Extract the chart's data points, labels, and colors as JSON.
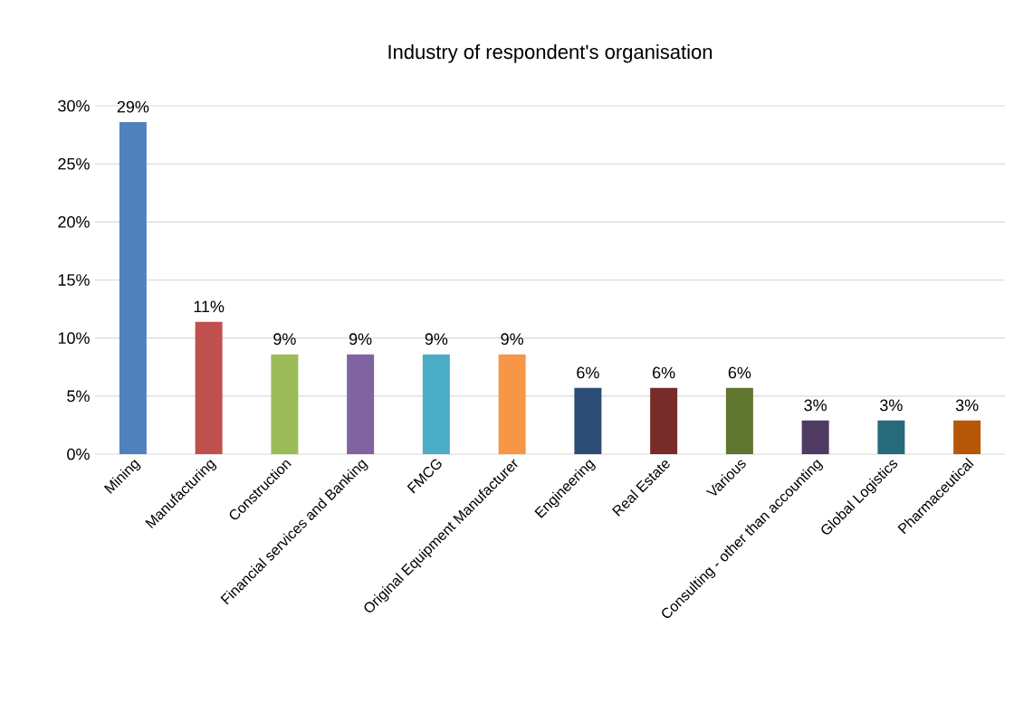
{
  "chart_data": {
    "type": "bar",
    "title": "Industry of respondent's organisation",
    "categories": [
      "Mining",
      "Manufacturing",
      "Construction",
      "Financial services and Banking",
      "FMCG",
      "Original Equipment Manufacturer",
      "Engineering",
      "Real Estate",
      "Various",
      "Consulting - other than accounting",
      "Global Logistics",
      "Pharmaceutical"
    ],
    "values": [
      28.6,
      11.4,
      8.6,
      8.6,
      8.6,
      8.6,
      5.7,
      5.7,
      5.7,
      2.9,
      2.9,
      2.9
    ],
    "value_labels": [
      "29%",
      "11%",
      "9%",
      "9%",
      "9%",
      "9%",
      "6%",
      "6%",
      "6%",
      "3%",
      "3%",
      "3%"
    ],
    "colors": [
      "#4f81bd",
      "#c0504d",
      "#9bbb59",
      "#8064a2",
      "#4bacc6",
      "#f79646",
      "#2c4d75",
      "#772c2a",
      "#5f7530",
      "#4d3b62",
      "#276a7c",
      "#b65708"
    ],
    "ylim": [
      0,
      30
    ],
    "yticks": [
      {
        "value": 0,
        "label": "0%"
      },
      {
        "value": 5,
        "label": "5%"
      },
      {
        "value": 10,
        "label": "10%"
      },
      {
        "value": 15,
        "label": "15%"
      },
      {
        "value": 20,
        "label": "20%"
      },
      {
        "value": 25,
        "label": "25%"
      },
      {
        "value": 30,
        "label": "30%"
      }
    ],
    "grid": "y"
  }
}
